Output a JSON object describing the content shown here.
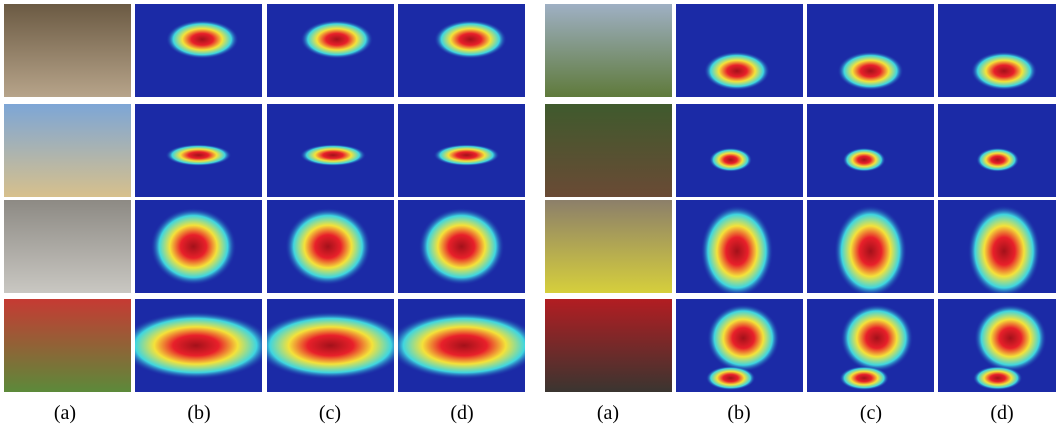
{
  "figure": {
    "column_labels": [
      "(a)",
      "(b)",
      "(c)",
      "(d)",
      "(a)",
      "(b)",
      "(c)",
      "(d)"
    ],
    "colors": {
      "heat_background": "#1b2aa6",
      "heat_ring": "#3fd6e0",
      "heat_mid": "#f4e23a",
      "heat_hot": "#e8202a",
      "heat_core": "#a3111a"
    }
  }
}
